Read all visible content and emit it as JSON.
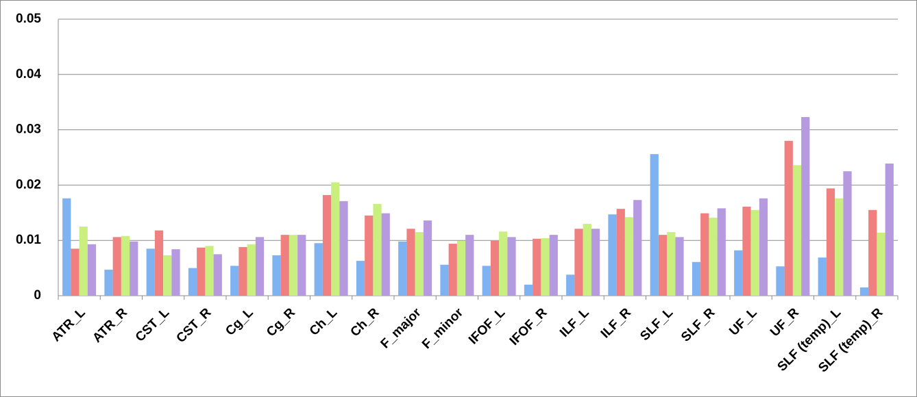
{
  "chart_data": {
    "type": "bar",
    "categories": [
      "ATR_L",
      "ATR_R",
      "CST_L",
      "CST_R",
      "Cg_L",
      "Cg_R",
      "Ch_L",
      "Ch_R",
      "F_major",
      "F_minor",
      "IFOF_L",
      "IFOF_R",
      "ILF_L",
      "ILF_R",
      "SLF_L",
      "SLF_R",
      "UF_L",
      "UF_R",
      "SLF (temp)_L",
      "SLF (temp)_R"
    ],
    "series": [
      {
        "color": "#7fb2f0",
        "values": [
          0.0176,
          0.0047,
          0.0085,
          0.005,
          0.0054,
          0.0073,
          0.0095,
          0.0063,
          0.0098,
          0.0056,
          0.0054,
          0.002,
          0.0038,
          0.0147,
          0.0256,
          0.0061,
          0.0082,
          0.0053,
          0.0069,
          0.0015
        ]
      },
      {
        "color": "#f07f7f",
        "values": [
          0.0085,
          0.0106,
          0.0118,
          0.0087,
          0.0088,
          0.011,
          0.0182,
          0.0145,
          0.0121,
          0.0094,
          0.0099,
          0.0103,
          0.0121,
          0.0157,
          0.011,
          0.0149,
          0.0161,
          0.028,
          0.0194,
          0.0155
        ]
      },
      {
        "color": "#c9f07f",
        "values": [
          0.0125,
          0.0108,
          0.0073,
          0.009,
          0.0093,
          0.011,
          0.0205,
          0.0166,
          0.0115,
          0.0099,
          0.0116,
          0.0104,
          0.013,
          0.0142,
          0.0115,
          0.0141,
          0.0155,
          0.0236,
          0.0176,
          0.0114
        ]
      },
      {
        "color": "#b59ae0",
        "values": [
          0.0093,
          0.0098,
          0.0084,
          0.0075,
          0.0106,
          0.011,
          0.0171,
          0.0149,
          0.0136,
          0.011,
          0.0106,
          0.011,
          0.0121,
          0.0173,
          0.0106,
          0.0158,
          0.0176,
          0.0323,
          0.0225,
          0.0239
        ]
      }
    ],
    "ylim": [
      0,
      0.05
    ],
    "yticks": [
      0,
      0.01,
      0.02,
      0.03,
      0.04,
      0.05
    ],
    "grid": true
  }
}
